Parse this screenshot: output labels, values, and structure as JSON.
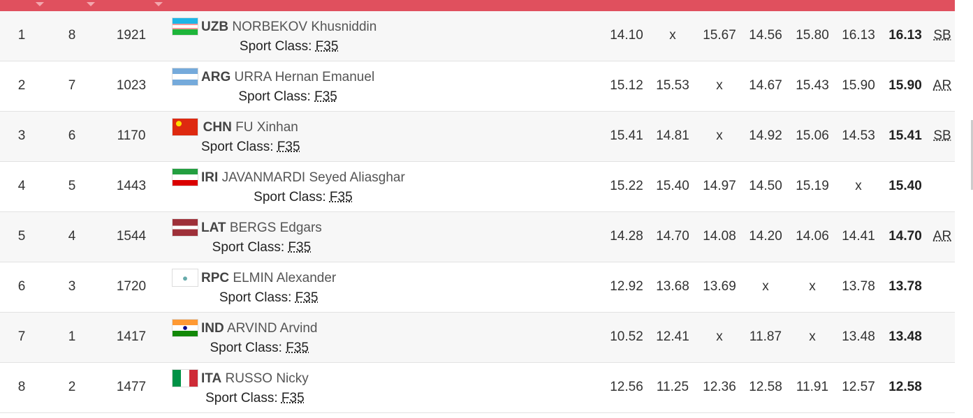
{
  "sport_class_label": "Sport Class:",
  "rows": [
    {
      "rank": "1",
      "order": "8",
      "bib": "1921",
      "country": "UZB",
      "name": "NORBEKOV Khusniddin",
      "sport_class": "F35",
      "attempts": [
        "14.10",
        "x",
        "15.67",
        "14.56",
        "15.80",
        "16.13"
      ],
      "best": "16.13",
      "note": "SB"
    },
    {
      "rank": "2",
      "order": "7",
      "bib": "1023",
      "country": "ARG",
      "name": "URRA Hernan Emanuel",
      "sport_class": "F35",
      "attempts": [
        "15.12",
        "15.53",
        "x",
        "14.67",
        "15.43",
        "15.90"
      ],
      "best": "15.90",
      "note": "AR"
    },
    {
      "rank": "3",
      "order": "6",
      "bib": "1170",
      "country": "CHN",
      "name": "FU Xinhan",
      "sport_class": "F35",
      "attempts": [
        "15.41",
        "14.81",
        "x",
        "14.92",
        "15.06",
        "14.53"
      ],
      "best": "15.41",
      "note": "SB"
    },
    {
      "rank": "4",
      "order": "5",
      "bib": "1443",
      "country": "IRI",
      "name": "JAVANMARDI Seyed Aliasghar",
      "sport_class": "F35",
      "attempts": [
        "15.22",
        "15.40",
        "14.97",
        "14.50",
        "15.19",
        "x"
      ],
      "best": "15.40"
    },
    {
      "rank": "5",
      "order": "4",
      "bib": "1544",
      "country": "LAT",
      "name": "BERGS Edgars",
      "sport_class": "F35",
      "attempts": [
        "14.28",
        "14.70",
        "14.08",
        "14.20",
        "14.06",
        "14.41"
      ],
      "best": "14.70",
      "note": "AR"
    },
    {
      "rank": "6",
      "order": "3",
      "bib": "1720",
      "country": "RPC",
      "name": "ELMIN Alexander",
      "sport_class": "F35",
      "attempts": [
        "12.92",
        "13.68",
        "13.69",
        "x",
        "x",
        "13.78"
      ],
      "best": "13.78"
    },
    {
      "rank": "7",
      "order": "1",
      "bib": "1417",
      "country": "IND",
      "name": "ARVIND Arvind",
      "sport_class": "F35",
      "attempts": [
        "10.52",
        "12.41",
        "x",
        "11.87",
        "x",
        "13.48"
      ],
      "best": "13.48"
    },
    {
      "rank": "8",
      "order": "2",
      "bib": "1477",
      "country": "ITA",
      "name": "RUSSO Nicky",
      "sport_class": "F35",
      "attempts": [
        "12.56",
        "11.25",
        "12.36",
        "12.58",
        "11.91",
        "12.57"
      ],
      "best": "12.58"
    }
  ]
}
